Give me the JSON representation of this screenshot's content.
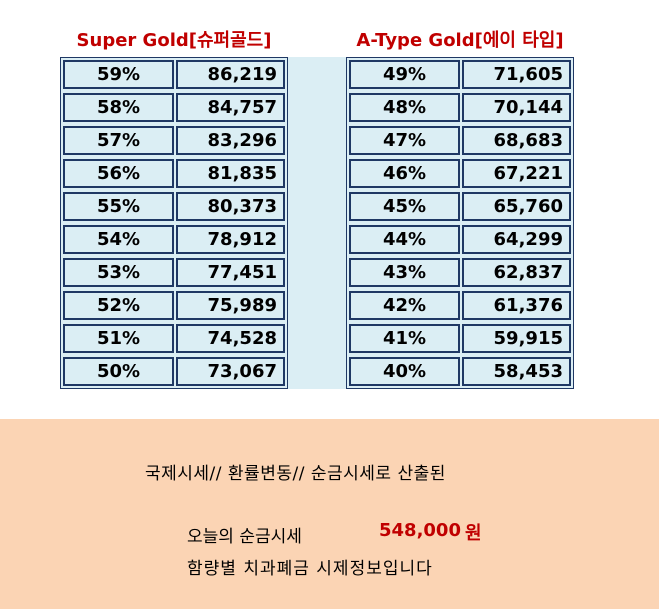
{
  "left_table": {
    "title": "Super Gold[슈퍼골드]",
    "rows": [
      {
        "pct": "59%",
        "value": "86,219"
      },
      {
        "pct": "58%",
        "value": "84,757"
      },
      {
        "pct": "57%",
        "value": "83,296"
      },
      {
        "pct": "56%",
        "value": "81,835"
      },
      {
        "pct": "55%",
        "value": "80,373"
      },
      {
        "pct": "54%",
        "value": "78,912"
      },
      {
        "pct": "53%",
        "value": "77,451"
      },
      {
        "pct": "52%",
        "value": "75,989"
      },
      {
        "pct": "51%",
        "value": "74,528"
      },
      {
        "pct": "50%",
        "value": "73,067"
      }
    ]
  },
  "right_table": {
    "title": "A-Type Gold[에이 타입]",
    "rows": [
      {
        "pct": "49%",
        "value": "71,605"
      },
      {
        "pct": "48%",
        "value": "70,144"
      },
      {
        "pct": "47%",
        "value": "68,683"
      },
      {
        "pct": "46%",
        "value": "67,221"
      },
      {
        "pct": "45%",
        "value": "65,760"
      },
      {
        "pct": "44%",
        "value": "64,299"
      },
      {
        "pct": "43%",
        "value": "62,837"
      },
      {
        "pct": "42%",
        "value": "61,376"
      },
      {
        "pct": "41%",
        "value": "59,915"
      },
      {
        "pct": "40%",
        "value": "58,453"
      }
    ]
  },
  "footer": {
    "line1": "국제시세// 환률변동// 순금시세로 산출된",
    "price_label": "오늘의 순금시세",
    "price_value": "548,000",
    "price_unit": "원",
    "line3": "함량별 치과폐금 시제정보입니다"
  },
  "colors": {
    "title_red": "#c00000",
    "table_bg": "#dbeef4",
    "border_navy": "#1f3864",
    "footer_bg": "#fbd4b4"
  }
}
